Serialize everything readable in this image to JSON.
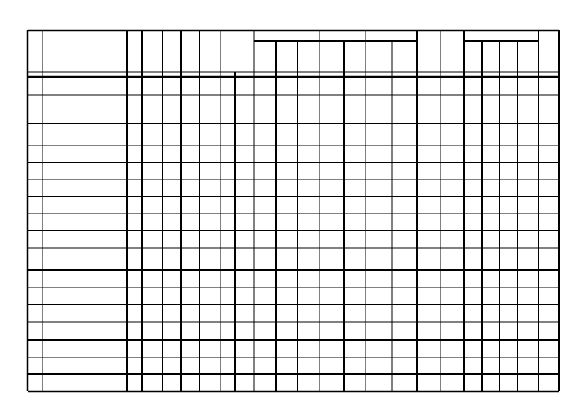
{
  "table": {
    "line_color": "#000000",
    "background": "#ffffff"
  }
}
